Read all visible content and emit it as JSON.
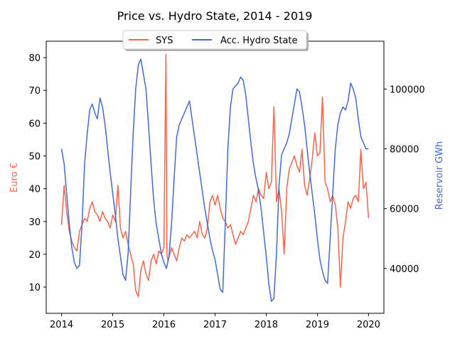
{
  "chart_data": {
    "type": "line",
    "title": "Price vs. Hydro State, 2014 - 2019",
    "xlabel": "",
    "xticks": [
      "2014",
      "2015",
      "2016",
      "2017",
      "2018",
      "2019",
      "2020"
    ],
    "xlim": [
      2013.7,
      2020.3
    ],
    "y_left": {
      "label": "Euro €",
      "color": "#ff6347",
      "ticks": [
        "10",
        "20",
        "30",
        "40",
        "50",
        "60",
        "70",
        "80"
      ],
      "ylim": [
        2,
        85
      ]
    },
    "y_right": {
      "label": "Reservoir GWh",
      "color": "#4169e1",
      "ticks": [
        "40000",
        "60000",
        "80000",
        "100000"
      ],
      "ylim": [
        25000,
        116000
      ]
    },
    "legend": {
      "placement": "top-center",
      "entries": [
        "SYS",
        "Acc. Hydro State"
      ]
    },
    "series": [
      {
        "name": "SYS",
        "axis": "left",
        "color": "#ff6347",
        "x": [
          2014.0,
          2014.05,
          2014.1,
          2014.15,
          2014.2,
          2014.25,
          2014.3,
          2014.35,
          2014.4,
          2014.45,
          2014.5,
          2014.55,
          2014.6,
          2014.65,
          2014.7,
          2014.75,
          2014.8,
          2014.85,
          2014.9,
          2014.95,
          2015.0,
          2015.05,
          2015.1,
          2015.15,
          2015.2,
          2015.25,
          2015.3,
          2015.35,
          2015.4,
          2015.45,
          2015.5,
          2015.55,
          2015.6,
          2015.65,
          2015.7,
          2015.75,
          2015.8,
          2015.85,
          2015.9,
          2015.95,
          2016.0,
          2016.04,
          2016.06,
          2016.08,
          2016.1,
          2016.15,
          2016.2,
          2016.25,
          2016.3,
          2016.35,
          2016.4,
          2016.45,
          2016.5,
          2016.55,
          2016.6,
          2016.65,
          2016.7,
          2016.75,
          2016.8,
          2016.85,
          2016.9,
          2016.95,
          2017.0,
          2017.05,
          2017.1,
          2017.15,
          2017.2,
          2017.25,
          2017.3,
          2017.35,
          2017.4,
          2017.45,
          2017.5,
          2017.55,
          2017.6,
          2017.65,
          2017.7,
          2017.75,
          2017.8,
          2017.85,
          2017.9,
          2017.95,
          2018.0,
          2018.05,
          2018.1,
          2018.15,
          2018.2,
          2018.25,
          2018.3,
          2018.35,
          2018.4,
          2018.45,
          2018.5,
          2018.55,
          2018.6,
          2018.65,
          2018.7,
          2018.75,
          2018.8,
          2018.85,
          2018.9,
          2018.95,
          2019.0,
          2019.05,
          2019.1,
          2019.15,
          2019.2,
          2019.25,
          2019.3,
          2019.35,
          2019.4,
          2019.45,
          2019.5,
          2019.55,
          2019.6,
          2019.65,
          2019.7,
          2019.75,
          2019.8,
          2019.85,
          2019.9,
          2019.95,
          2020.0
        ],
        "values": [
          29,
          41,
          33,
          27,
          24,
          22,
          21,
          27,
          29,
          31,
          30,
          34,
          36,
          33,
          32,
          30,
          33,
          31,
          30,
          28,
          32,
          30,
          41,
          28,
          25,
          27,
          23,
          20,
          17,
          9,
          7,
          15,
          18,
          14,
          12,
          18,
          20,
          17,
          21,
          20,
          22,
          81,
          20,
          18,
          19,
          22,
          20,
          18,
          22,
          25,
          24,
          26,
          25,
          26,
          27,
          25,
          30,
          26,
          25,
          28,
          36,
          38,
          35,
          38,
          34,
          31,
          30,
          28,
          29,
          26,
          23,
          25,
          27,
          26,
          28,
          30,
          34,
          38,
          36,
          40,
          38,
          37,
          45,
          40,
          42,
          65,
          36,
          40,
          33,
          20,
          40,
          46,
          48,
          50,
          47,
          45,
          52,
          41,
          38,
          43,
          49,
          57,
          50,
          51,
          68,
          42,
          40,
          36,
          38,
          35,
          28,
          10,
          25,
          30,
          36,
          34,
          37,
          38,
          36,
          52,
          40,
          42,
          31
        ]
      },
      {
        "name": "Acc. Hydro State",
        "axis": "right",
        "color": "#4169e1",
        "x": [
          2014.0,
          2014.05,
          2014.1,
          2014.15,
          2014.2,
          2014.25,
          2014.3,
          2014.35,
          2014.4,
          2014.45,
          2014.5,
          2014.55,
          2014.6,
          2014.65,
          2014.7,
          2014.75,
          2014.8,
          2014.85,
          2014.9,
          2014.95,
          2015.0,
          2015.05,
          2015.1,
          2015.15,
          2015.2,
          2015.25,
          2015.3,
          2015.35,
          2015.4,
          2015.45,
          2015.5,
          2015.55,
          2015.6,
          2015.65,
          2015.7,
          2015.75,
          2015.8,
          2015.85,
          2015.9,
          2015.95,
          2016.0,
          2016.05,
          2016.1,
          2016.15,
          2016.2,
          2016.25,
          2016.3,
          2016.35,
          2016.4,
          2016.45,
          2016.5,
          2016.55,
          2016.6,
          2016.65,
          2016.7,
          2016.75,
          2016.8,
          2016.85,
          2016.9,
          2016.95,
          2017.0,
          2017.05,
          2017.1,
          2017.15,
          2017.2,
          2017.25,
          2017.3,
          2017.35,
          2017.4,
          2017.45,
          2017.5,
          2017.55,
          2017.6,
          2017.65,
          2017.7,
          2017.75,
          2017.8,
          2017.85,
          2017.9,
          2017.95,
          2018.0,
          2018.05,
          2018.1,
          2018.15,
          2018.2,
          2018.25,
          2018.3,
          2018.35,
          2018.4,
          2018.45,
          2018.5,
          2018.55,
          2018.6,
          2018.65,
          2018.7,
          2018.75,
          2018.8,
          2018.85,
          2018.9,
          2018.95,
          2019.0,
          2019.05,
          2019.1,
          2019.15,
          2019.2,
          2019.25,
          2019.3,
          2019.35,
          2019.4,
          2019.45,
          2019.5,
          2019.55,
          2019.6,
          2019.65,
          2019.7,
          2019.75,
          2019.8,
          2019.85,
          2019.9,
          2019.95,
          2020.0
        ],
        "values": [
          80000,
          75000,
          65000,
          55000,
          47000,
          42000,
          40000,
          41000,
          55000,
          75000,
          85000,
          93000,
          95000,
          92000,
          90000,
          97000,
          94000,
          88000,
          80000,
          72000,
          65000,
          58000,
          50000,
          44000,
          38000,
          36000,
          45000,
          65000,
          85000,
          100000,
          108000,
          110000,
          105000,
          100000,
          88000,
          75000,
          63000,
          55000,
          50000,
          45000,
          42000,
          40000,
          44000,
          55000,
          70000,
          84000,
          88000,
          90000,
          92000,
          94000,
          96000,
          90000,
          84000,
          78000,
          72000,
          66000,
          60000,
          55000,
          50000,
          46000,
          43000,
          38000,
          33000,
          32000,
          55000,
          80000,
          94000,
          100000,
          101000,
          102000,
          104000,
          103000,
          98000,
          90000,
          82000,
          75000,
          70000,
          66000,
          60000,
          52000,
          44000,
          35000,
          29000,
          30000,
          45000,
          68000,
          78000,
          80000,
          82000,
          85000,
          90000,
          95000,
          100000,
          99000,
          94000,
          88000,
          80000,
          72000,
          65000,
          58000,
          50000,
          43000,
          39000,
          36000,
          35000,
          50000,
          65000,
          80000,
          88000,
          92000,
          94000,
          93000,
          96000,
          102000,
          100000,
          97000,
          90000,
          84000,
          82000,
          80000,
          80000
        ]
      }
    ]
  }
}
